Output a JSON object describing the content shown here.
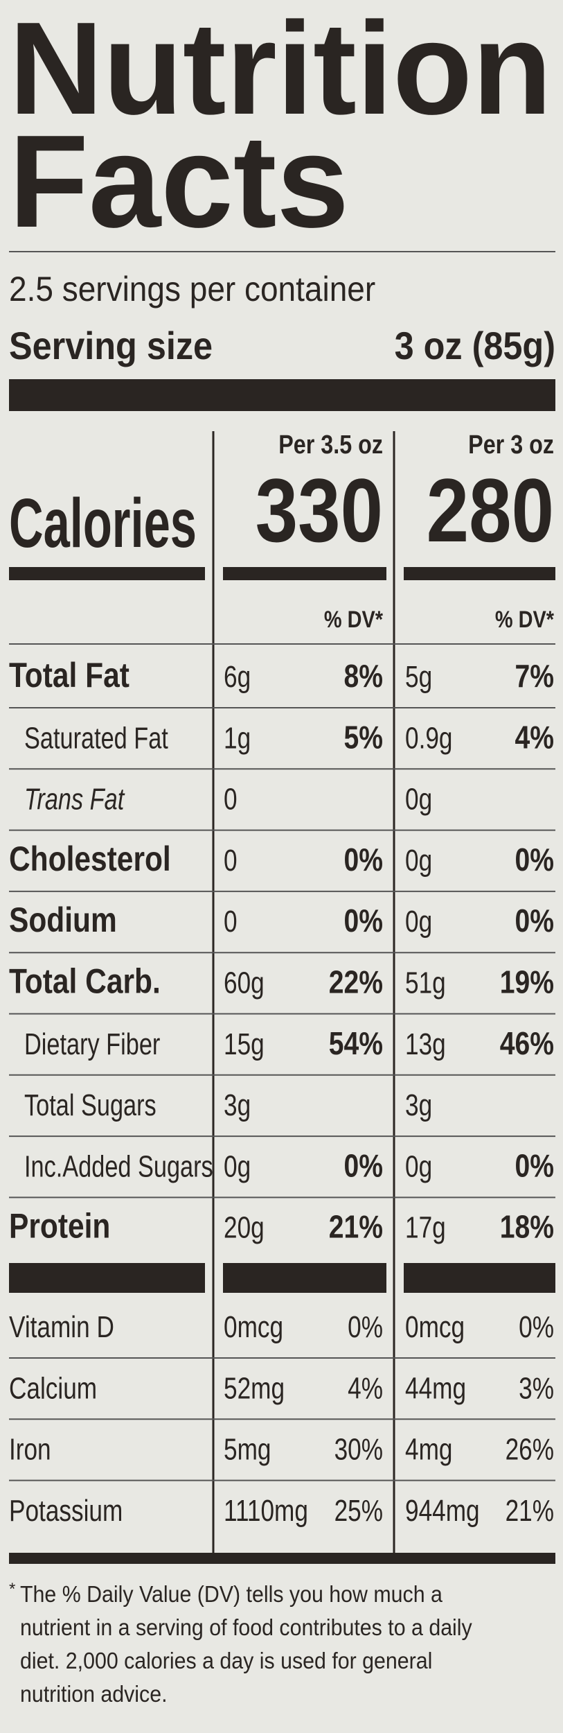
{
  "header": {
    "title_line1": "Nutrition",
    "title_line2": "Facts",
    "servings": "2.5 servings per container",
    "serving_size_label": "Serving size",
    "serving_size_value": "3 oz (85g)"
  },
  "columns": [
    "Per 3.5 oz",
    "Per 3 oz"
  ],
  "calories": {
    "label": "Calories",
    "values": [
      "330",
      "280"
    ]
  },
  "dv_header": [
    "% DV*",
    "% DV*"
  ],
  "nutrients": [
    {
      "name": "Total Fat",
      "style": "bold",
      "amounts": [
        "6g",
        "5g"
      ],
      "dv": [
        "8%",
        "7%"
      ]
    },
    {
      "name": "Saturated Fat",
      "style": "indent",
      "amounts": [
        "1g",
        "0.9g"
      ],
      "dv": [
        "5%",
        "4%"
      ]
    },
    {
      "name": "Trans Fat",
      "style": "indent-italic",
      "amounts": [
        "0",
        "0g"
      ],
      "dv": null
    },
    {
      "name": "Cholesterol",
      "style": "bold",
      "amounts": [
        "0",
        "0g"
      ],
      "dv": [
        "0%",
        "0%"
      ]
    },
    {
      "name": "Sodium",
      "style": "bold",
      "amounts": [
        "0",
        "0g"
      ],
      "dv": [
        "0%",
        "0%"
      ]
    },
    {
      "name": "Total Carb.",
      "style": "bold",
      "amounts": [
        "60g",
        "51g"
      ],
      "dv": [
        "22%",
        "19%"
      ]
    },
    {
      "name": "Dietary Fiber",
      "style": "indent",
      "amounts": [
        "15g",
        "13g"
      ],
      "dv": [
        "54%",
        "46%"
      ]
    },
    {
      "name": "Total Sugars",
      "style": "indent",
      "amounts": [
        "3g",
        "3g"
      ],
      "dv": null
    },
    {
      "name": "Inc.Added Sugars",
      "style": "indent",
      "amounts": [
        "0g",
        "0g"
      ],
      "dv": [
        "0%",
        "0%"
      ]
    },
    {
      "name": "Protein",
      "style": "bold",
      "amounts": [
        "20g",
        "17g"
      ],
      "dv": [
        "21%",
        "18%"
      ]
    }
  ],
  "vitamins": [
    {
      "name": "Vitamin D",
      "amounts": [
        "0mcg",
        "0mcg"
      ],
      "dv": [
        "0%",
        "0%"
      ]
    },
    {
      "name": "Calcium",
      "amounts": [
        "52mg",
        "44mg"
      ],
      "dv": [
        "4%",
        "3%"
      ]
    },
    {
      "name": "Iron",
      "amounts": [
        "5mg",
        "4mg"
      ],
      "dv": [
        "30%",
        "26%"
      ]
    },
    {
      "name": "Potassium",
      "amounts": [
        "1110mg",
        "944mg"
      ],
      "dv": [
        "25%",
        "21%"
      ]
    }
  ],
  "footnote": {
    "mark": "*",
    "lines": [
      "The % Daily Value (DV) tells you how much a",
      "nutrient in a serving of food contributes to a daily",
      "diet. 2,000 calories a day is used for general",
      "nutrition advice."
    ]
  }
}
